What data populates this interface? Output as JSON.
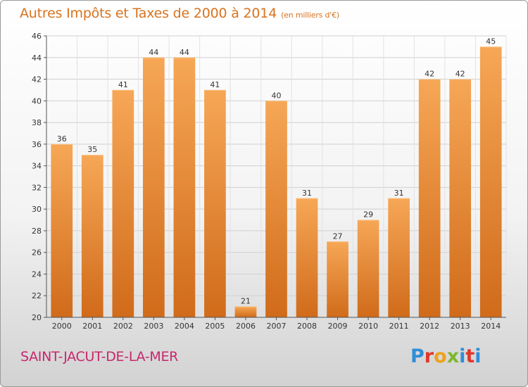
{
  "header": {
    "title": "Autres Impôts et Taxes de 2000 à 2014",
    "unit": "(en milliers d'€)"
  },
  "footer": {
    "place": "SAINT-JACUT-DE-LA-MER",
    "logo_text": "Proxiti"
  },
  "colors": {
    "bar_top": "#f6a756",
    "bar_bottom": "#d06b1a",
    "title": "#d8731e",
    "place": "#c8266c"
  },
  "chart_data": {
    "type": "bar",
    "title": "Autres Impôts et Taxes de 2000 à 2014",
    "xlabel": "",
    "ylabel": "",
    "ylim": [
      20,
      46
    ],
    "yticks": [
      20,
      22,
      24,
      26,
      28,
      30,
      32,
      34,
      36,
      38,
      40,
      42,
      44,
      46
    ],
    "grid": true,
    "categories": [
      "2000",
      "2001",
      "2002",
      "2003",
      "2004",
      "2005",
      "2006",
      "2007",
      "2008",
      "2009",
      "2010",
      "2011",
      "2012",
      "2013",
      "2014"
    ],
    "values": [
      36,
      35,
      41,
      44,
      44,
      41,
      21,
      40,
      31,
      27,
      29,
      31,
      42,
      42,
      45
    ]
  }
}
